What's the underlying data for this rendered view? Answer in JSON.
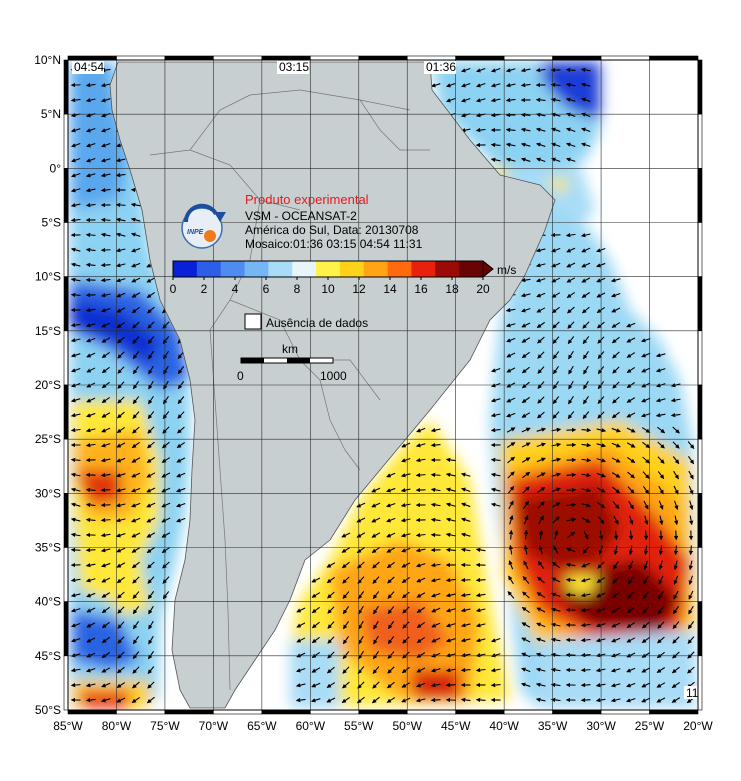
{
  "title": "Produto experimental",
  "satellite": "VSM - OCEANSAT-2",
  "region_date": "América do Sul, Data: 20130708",
  "mosaic": "Mosaico:01:36 03:15 04:54 11:31",
  "logo_text": "INPE",
  "colorbar": {
    "unit": "m/s",
    "ticks": [
      "0",
      "2",
      "4",
      "6",
      "8",
      "10",
      "12",
      "14",
      "16",
      "18",
      "20"
    ],
    "colors": [
      "#0a1fd8",
      "#2d5fe6",
      "#4f8cf0",
      "#76b6f5",
      "#a9dcf7",
      "#e7f4fa",
      "#fff24a",
      "#ffd21a",
      "#ffa514",
      "#ff6a0f",
      "#e7210c",
      "#9c0a06",
      "#6a0303"
    ]
  },
  "no_data_label": "Ausência de dados",
  "scale_bar": {
    "unit": "km",
    "start": "0",
    "end": "1000"
  },
  "pass_times": [
    "04:54",
    "03:15",
    "01:36"
  ],
  "corner_label": "11",
  "axes": {
    "lon_labels": [
      "85°W",
      "80°W",
      "75°W",
      "70°W",
      "65°W",
      "60°W",
      "55°W",
      "50°W",
      "45°W",
      "40°W",
      "35°W",
      "30°W",
      "25°W",
      "20°W"
    ],
    "lat_labels": [
      "10°N",
      "5°N",
      "0°",
      "5°S",
      "10°S",
      "15°S",
      "20°S",
      "25°S",
      "30°S",
      "35°S",
      "40°S",
      "45°S",
      "50°S"
    ]
  }
}
